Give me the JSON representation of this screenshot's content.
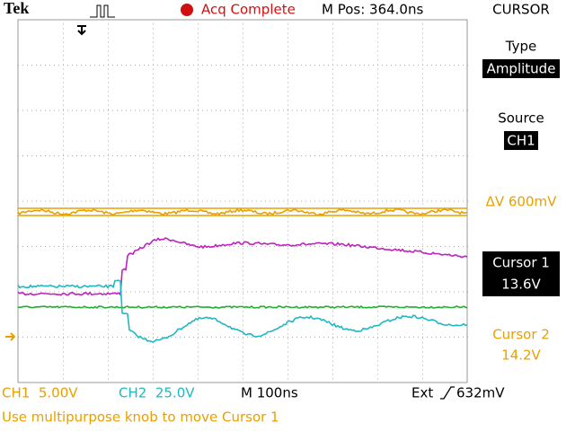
{
  "header": {
    "brand": "Tek",
    "acquisition_status": "Acq Complete",
    "position": "M Pos: 364.0ns",
    "menu_title": "CURSOR"
  },
  "menu": {
    "type_label": "Type",
    "type_value": "Amplitude",
    "source_label": "Source",
    "source_value": "CH1",
    "delta": "ΔV 600mV",
    "cursor1_label": "Cursor 1",
    "cursor1_value": "13.6V",
    "cursor2_label": "Cursor 2",
    "cursor2_value": "14.2V"
  },
  "footer": {
    "ch1": "CH1  5.00V",
    "ch2": "CH2  25.0V",
    "timebase": "M 100ns",
    "trigger_source": "Ext",
    "trigger_level": "632mV",
    "message": "Use multipurpose knob to move Cursor 1"
  }
}
